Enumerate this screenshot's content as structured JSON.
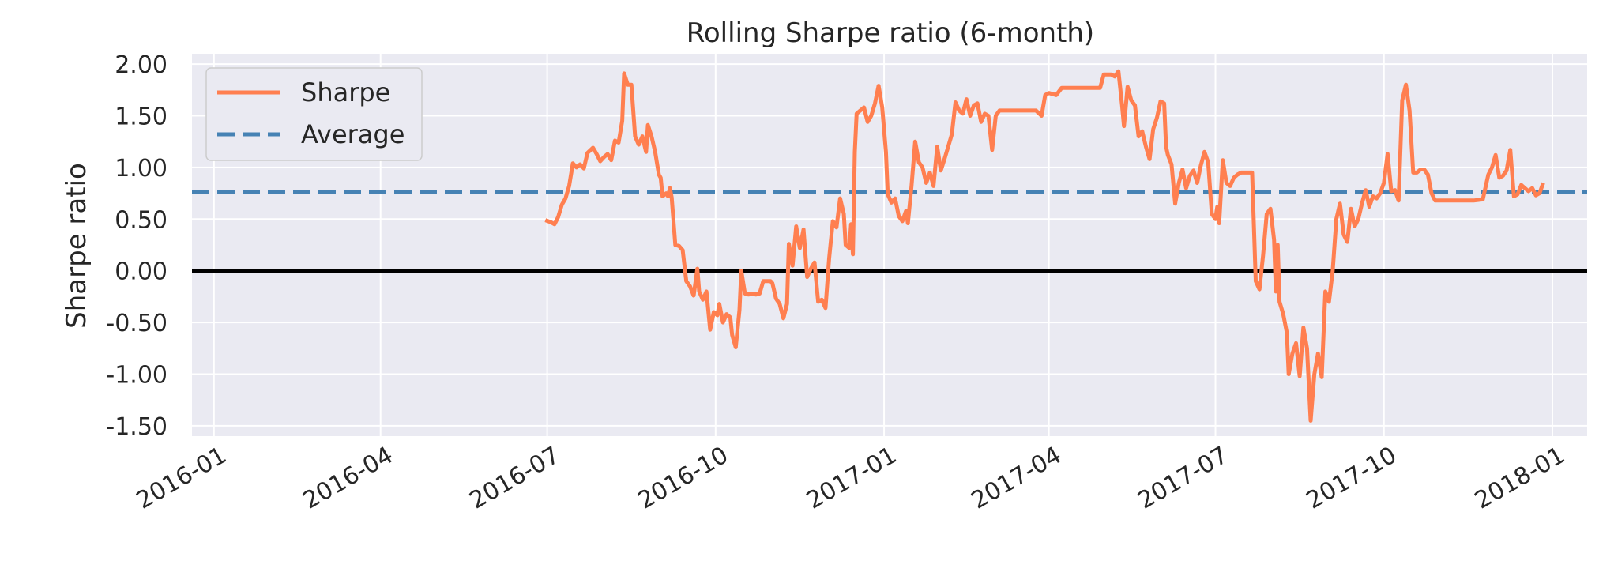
{
  "chart_data": {
    "type": "line",
    "title": "Rolling Sharpe ratio (6-month)",
    "xlabel": "",
    "ylabel": "Sharpe ratio",
    "x_ticks": [
      "2016-01",
      "2016-04",
      "2016-07",
      "2016-10",
      "2017-01",
      "2017-04",
      "2017-07",
      "2017-10",
      "2018-01"
    ],
    "y_ticks": [
      "2.00",
      "1.50",
      "1.00",
      "0.50",
      "0.00",
      "-0.50",
      "-1.00",
      "-1.50"
    ],
    "xlim": [
      "2015-12-20",
      "2018-01-20"
    ],
    "ylim": [
      -1.6,
      2.1
    ],
    "grid": true,
    "legend_position": "top-left",
    "baseline": 0,
    "series": [
      {
        "name": "Sharpe",
        "color": "#ff7f50",
        "style": "solid",
        "points": [
          [
            "2016-06-30",
            0.49
          ],
          [
            "2016-07-03",
            0.47
          ],
          [
            "2016-07-05",
            0.45
          ],
          [
            "2016-07-07",
            0.52
          ],
          [
            "2016-07-09",
            0.64
          ],
          [
            "2016-07-11",
            0.7
          ],
          [
            "2016-07-13",
            0.82
          ],
          [
            "2016-07-15",
            1.04
          ],
          [
            "2016-07-17",
            1.0
          ],
          [
            "2016-07-19",
            1.03
          ],
          [
            "2016-07-21",
            0.99
          ],
          [
            "2016-07-23",
            1.14
          ],
          [
            "2016-07-26",
            1.19
          ],
          [
            "2016-07-28",
            1.13
          ],
          [
            "2016-07-30",
            1.06
          ],
          [
            "2016-08-01",
            1.1
          ],
          [
            "2016-08-03",
            1.13
          ],
          [
            "2016-08-05",
            1.07
          ],
          [
            "2016-08-07",
            1.26
          ],
          [
            "2016-08-09",
            1.24
          ],
          [
            "2016-08-11",
            1.45
          ],
          [
            "2016-08-12",
            1.91
          ],
          [
            "2016-08-14",
            1.8
          ],
          [
            "2016-08-16",
            1.8
          ],
          [
            "2016-08-18",
            1.3
          ],
          [
            "2016-08-20",
            1.22
          ],
          [
            "2016-08-22",
            1.3
          ],
          [
            "2016-08-24",
            1.15
          ],
          [
            "2016-08-25",
            1.41
          ],
          [
            "2016-08-27",
            1.3
          ],
          [
            "2016-08-29",
            1.15
          ],
          [
            "2016-08-31",
            0.93
          ],
          [
            "2016-09-01",
            0.9
          ],
          [
            "2016-09-02",
            0.72
          ],
          [
            "2016-09-04",
            0.75
          ],
          [
            "2016-09-05",
            0.72
          ],
          [
            "2016-09-06",
            0.8
          ],
          [
            "2016-09-07",
            0.71
          ],
          [
            "2016-09-09",
            0.25
          ],
          [
            "2016-09-11",
            0.24
          ],
          [
            "2016-09-13",
            0.2
          ],
          [
            "2016-09-15",
            -0.1
          ],
          [
            "2016-09-17",
            -0.15
          ],
          [
            "2016-09-19",
            -0.24
          ],
          [
            "2016-09-21",
            0.02
          ],
          [
            "2016-09-22",
            -0.2
          ],
          [
            "2016-09-24",
            -0.28
          ],
          [
            "2016-09-26",
            -0.2
          ],
          [
            "2016-09-28",
            -0.57
          ],
          [
            "2016-09-30",
            -0.4
          ],
          [
            "2016-10-02",
            -0.43
          ],
          [
            "2016-10-03",
            -0.32
          ],
          [
            "2016-10-05",
            -0.5
          ],
          [
            "2016-10-07",
            -0.42
          ],
          [
            "2016-10-09",
            -0.45
          ],
          [
            "2016-10-10",
            -0.62
          ],
          [
            "2016-10-12",
            -0.74
          ],
          [
            "2016-10-14",
            -0.38
          ],
          [
            "2016-10-15",
            0.0
          ],
          [
            "2016-10-17",
            -0.22
          ],
          [
            "2016-10-19",
            -0.23
          ],
          [
            "2016-10-21",
            -0.22
          ],
          [
            "2016-10-23",
            -0.23
          ],
          [
            "2016-10-25",
            -0.22
          ],
          [
            "2016-10-27",
            -0.1
          ],
          [
            "2016-10-29",
            -0.1
          ],
          [
            "2016-10-31",
            -0.1
          ],
          [
            "2016-11-01",
            -0.12
          ],
          [
            "2016-11-03",
            -0.27
          ],
          [
            "2016-11-05",
            -0.32
          ],
          [
            "2016-11-07",
            -0.46
          ],
          [
            "2016-11-09",
            -0.32
          ],
          [
            "2016-11-10",
            0.26
          ],
          [
            "2016-11-12",
            0.05
          ],
          [
            "2016-11-14",
            0.43
          ],
          [
            "2016-11-16",
            0.22
          ],
          [
            "2016-11-18",
            0.4
          ],
          [
            "2016-11-20",
            -0.06
          ],
          [
            "2016-11-22",
            0.02
          ],
          [
            "2016-11-24",
            0.08
          ],
          [
            "2016-11-26",
            -0.3
          ],
          [
            "2016-11-28",
            -0.28
          ],
          [
            "2016-11-30",
            -0.36
          ],
          [
            "2016-12-02",
            0.12
          ],
          [
            "2016-12-04",
            0.48
          ],
          [
            "2016-12-06",
            0.42
          ],
          [
            "2016-12-08",
            0.7
          ],
          [
            "2016-12-10",
            0.55
          ],
          [
            "2016-12-11",
            0.25
          ],
          [
            "2016-12-13",
            0.22
          ],
          [
            "2016-12-14",
            0.45
          ],
          [
            "2016-12-15",
            0.16
          ],
          [
            "2016-12-16",
            1.15
          ],
          [
            "2016-12-17",
            1.52
          ],
          [
            "2016-12-19",
            1.55
          ],
          [
            "2016-12-21",
            1.58
          ],
          [
            "2016-12-23",
            1.44
          ],
          [
            "2016-12-25",
            1.5
          ],
          [
            "2016-12-27",
            1.62
          ],
          [
            "2016-12-29",
            1.79
          ],
          [
            "2016-12-31",
            1.58
          ],
          [
            "2017-01-02",
            1.15
          ],
          [
            "2017-01-03",
            0.74
          ],
          [
            "2017-01-05",
            0.66
          ],
          [
            "2017-01-07",
            0.7
          ],
          [
            "2017-01-09",
            0.53
          ],
          [
            "2017-01-11",
            0.48
          ],
          [
            "2017-01-13",
            0.58
          ],
          [
            "2017-01-14",
            0.46
          ],
          [
            "2017-01-16",
            0.82
          ],
          [
            "2017-01-18",
            1.25
          ],
          [
            "2017-01-20",
            1.05
          ],
          [
            "2017-01-22",
            1.0
          ],
          [
            "2017-01-24",
            0.85
          ],
          [
            "2017-01-26",
            0.95
          ],
          [
            "2017-01-28",
            0.82
          ],
          [
            "2017-01-30",
            1.2
          ],
          [
            "2017-02-01",
            0.97
          ],
          [
            "2017-02-03",
            1.08
          ],
          [
            "2017-02-05",
            1.2
          ],
          [
            "2017-02-07",
            1.32
          ],
          [
            "2017-02-09",
            1.63
          ],
          [
            "2017-02-11",
            1.55
          ],
          [
            "2017-02-13",
            1.52
          ],
          [
            "2017-02-15",
            1.66
          ],
          [
            "2017-02-17",
            1.5
          ],
          [
            "2017-02-19",
            1.6
          ],
          [
            "2017-02-21",
            1.62
          ],
          [
            "2017-02-23",
            1.44
          ],
          [
            "2017-02-25",
            1.52
          ],
          [
            "2017-02-27",
            1.5
          ],
          [
            "2017-03-01",
            1.17
          ],
          [
            "2017-03-03",
            1.5
          ],
          [
            "2017-03-05",
            1.55
          ],
          [
            "2017-03-10",
            1.55
          ],
          [
            "2017-03-15",
            1.55
          ],
          [
            "2017-03-20",
            1.55
          ],
          [
            "2017-03-25",
            1.55
          ],
          [
            "2017-03-28",
            1.5
          ],
          [
            "2017-03-30",
            1.7
          ],
          [
            "2017-04-01",
            1.72
          ],
          [
            "2017-04-05",
            1.7
          ],
          [
            "2017-04-08",
            1.77
          ],
          [
            "2017-04-15",
            1.77
          ],
          [
            "2017-04-22",
            1.77
          ],
          [
            "2017-04-29",
            1.77
          ],
          [
            "2017-05-01",
            1.9
          ],
          [
            "2017-05-05",
            1.9
          ],
          [
            "2017-05-07",
            1.88
          ],
          [
            "2017-05-09",
            1.93
          ],
          [
            "2017-05-11",
            1.6
          ],
          [
            "2017-05-12",
            1.4
          ],
          [
            "2017-05-14",
            1.78
          ],
          [
            "2017-05-16",
            1.65
          ],
          [
            "2017-05-18",
            1.6
          ],
          [
            "2017-05-20",
            1.3
          ],
          [
            "2017-05-22",
            1.35
          ],
          [
            "2017-05-24",
            1.2
          ],
          [
            "2017-05-26",
            1.08
          ],
          [
            "2017-05-28",
            1.37
          ],
          [
            "2017-05-30",
            1.48
          ],
          [
            "2017-06-01",
            1.64
          ],
          [
            "2017-06-03",
            1.62
          ],
          [
            "2017-06-04",
            1.2
          ],
          [
            "2017-06-05",
            1.12
          ],
          [
            "2017-06-07",
            1.03
          ],
          [
            "2017-06-09",
            0.65
          ],
          [
            "2017-06-11",
            0.85
          ],
          [
            "2017-06-13",
            0.98
          ],
          [
            "2017-06-15",
            0.8
          ],
          [
            "2017-06-17",
            0.92
          ],
          [
            "2017-06-19",
            0.97
          ],
          [
            "2017-06-21",
            0.85
          ],
          [
            "2017-06-23",
            1.02
          ],
          [
            "2017-06-25",
            1.15
          ],
          [
            "2017-06-27",
            1.05
          ],
          [
            "2017-06-29",
            0.55
          ],
          [
            "2017-07-01",
            0.5
          ],
          [
            "2017-07-02",
            0.62
          ],
          [
            "2017-07-03",
            0.46
          ],
          [
            "2017-07-05",
            1.07
          ],
          [
            "2017-07-07",
            0.85
          ],
          [
            "2017-07-09",
            0.82
          ],
          [
            "2017-07-11",
            0.9
          ],
          [
            "2017-07-13",
            0.93
          ],
          [
            "2017-07-15",
            0.95
          ],
          [
            "2017-07-18",
            0.95
          ],
          [
            "2017-07-21",
            0.95
          ],
          [
            "2017-07-23",
            -0.1
          ],
          [
            "2017-07-25",
            -0.18
          ],
          [
            "2017-07-27",
            0.15
          ],
          [
            "2017-07-29",
            0.55
          ],
          [
            "2017-07-31",
            0.6
          ],
          [
            "2017-08-02",
            0.3
          ],
          [
            "2017-08-03",
            -0.2
          ],
          [
            "2017-08-04",
            0.25
          ],
          [
            "2017-08-05",
            -0.3
          ],
          [
            "2017-08-07",
            -0.42
          ],
          [
            "2017-08-09",
            -0.6
          ],
          [
            "2017-08-10",
            -1.0
          ],
          [
            "2017-08-12",
            -0.8
          ],
          [
            "2017-08-14",
            -0.7
          ],
          [
            "2017-08-16",
            -1.02
          ],
          [
            "2017-08-18",
            -0.55
          ],
          [
            "2017-08-20",
            -0.75
          ],
          [
            "2017-08-22",
            -1.45
          ],
          [
            "2017-08-24",
            -1.0
          ],
          [
            "2017-08-26",
            -0.8
          ],
          [
            "2017-08-28",
            -1.03
          ],
          [
            "2017-08-30",
            -0.2
          ],
          [
            "2017-09-01",
            -0.3
          ],
          [
            "2017-09-03",
            0.0
          ],
          [
            "2017-09-05",
            0.5
          ],
          [
            "2017-09-07",
            0.65
          ],
          [
            "2017-09-09",
            0.35
          ],
          [
            "2017-09-11",
            0.28
          ],
          [
            "2017-09-13",
            0.6
          ],
          [
            "2017-09-15",
            0.43
          ],
          [
            "2017-09-17",
            0.5
          ],
          [
            "2017-09-19",
            0.65
          ],
          [
            "2017-09-21",
            0.78
          ],
          [
            "2017-09-23",
            0.62
          ],
          [
            "2017-09-25",
            0.72
          ],
          [
            "2017-09-27",
            0.7
          ],
          [
            "2017-09-29",
            0.75
          ],
          [
            "2017-10-01",
            0.85
          ],
          [
            "2017-10-03",
            1.13
          ],
          [
            "2017-10-05",
            0.77
          ],
          [
            "2017-10-07",
            0.78
          ],
          [
            "2017-10-09",
            0.68
          ],
          [
            "2017-10-11",
            1.65
          ],
          [
            "2017-10-13",
            1.8
          ],
          [
            "2017-10-15",
            1.55
          ],
          [
            "2017-10-17",
            0.95
          ],
          [
            "2017-10-19",
            0.95
          ],
          [
            "2017-10-21",
            0.98
          ],
          [
            "2017-10-23",
            0.98
          ],
          [
            "2017-10-25",
            0.93
          ],
          [
            "2017-10-27",
            0.75
          ],
          [
            "2017-10-29",
            0.68
          ],
          [
            "2017-11-05",
            0.68
          ],
          [
            "2017-11-12",
            0.68
          ],
          [
            "2017-11-19",
            0.68
          ],
          [
            "2017-11-24",
            0.69
          ],
          [
            "2017-11-27",
            0.93
          ],
          [
            "2017-11-29",
            1.0
          ],
          [
            "2017-12-01",
            1.12
          ],
          [
            "2017-12-03",
            0.9
          ],
          [
            "2017-12-05",
            0.92
          ],
          [
            "2017-12-07",
            0.97
          ],
          [
            "2017-12-09",
            1.17
          ],
          [
            "2017-12-11",
            0.72
          ],
          [
            "2017-12-13",
            0.74
          ],
          [
            "2017-12-15",
            0.83
          ],
          [
            "2017-12-17",
            0.8
          ],
          [
            "2017-12-19",
            0.77
          ],
          [
            "2017-12-21",
            0.8
          ],
          [
            "2017-12-23",
            0.73
          ],
          [
            "2017-12-25",
            0.75
          ],
          [
            "2017-12-27",
            0.85
          ]
        ]
      },
      {
        "name": "Average",
        "color": "#4682b4",
        "style": "dashed",
        "value": 0.76
      }
    ]
  }
}
